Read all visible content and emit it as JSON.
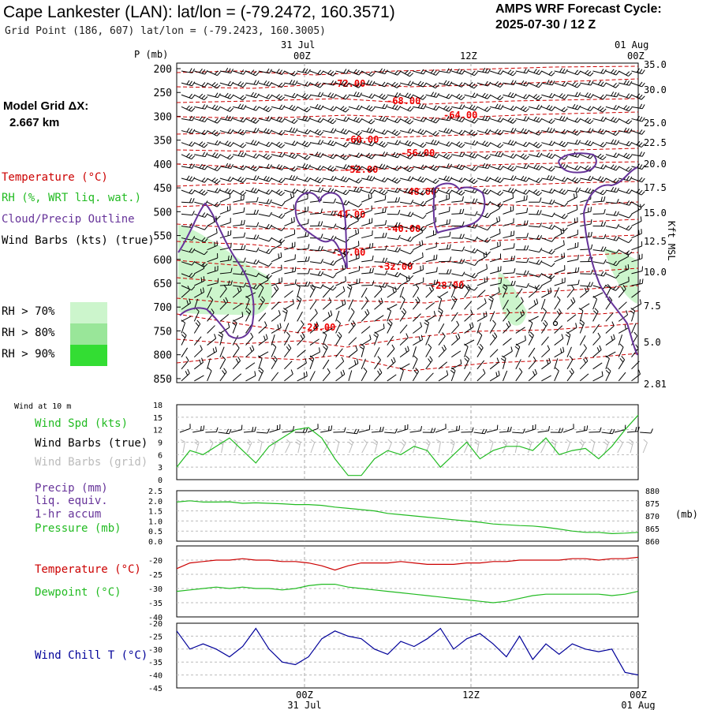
{
  "header": {
    "title": "Cape Lankester (LAN):  lat/lon = (-79.2472, 160.3571)",
    "subtitle": "Grid Point (186, 607) lat/lon = (-79.2423, 160.3005)",
    "cycle_line1": "AMPS WRF Forecast Cycle:",
    "cycle_line2": "2025-07-30 / 12  Z"
  },
  "model_grid": {
    "line1": "Model Grid ΔX:",
    "line2": "2.667 km"
  },
  "legend_upper": {
    "temperature": "Temperature (°C)",
    "rh": "RH (%, WRT liq. wat.)",
    "cloud": "Cloud/Precip Outline",
    "wind": "Wind Barbs (kts) (true)",
    "rh70": "RH > 70%",
    "rh80": "RH > 80%",
    "rh90": "RH > 90%",
    "rh_colors": [
      "#ccf5cc",
      "#99e699",
      "#33dd33"
    ]
  },
  "legend_lower": {
    "wind10": "Wind at 10 m",
    "wind_spd": "Wind Spd (kts)",
    "barbs_true": "Wind Barbs (true)",
    "barbs_grid": "Wind Barbs (grid)",
    "precip": "Precip (mm)",
    "liq": "liq. equiv.",
    "accum": "1-hr accum",
    "pressure": "Pressure (mb)",
    "temperature": "Temperature (°C)",
    "dewpoint": "Dewpoint (°C)",
    "windchill": "Wind Chill T (°C)"
  },
  "colors": {
    "temperature": "#cc0000",
    "green": "#22bb22",
    "cloud": "#663399",
    "windchill": "#000099",
    "gray_barb": "#bbbbbb"
  },
  "chart_data": [
    {
      "type": "line",
      "name": "upper-cross-section",
      "yaxis_label": "P (mb)",
      "pressure_ticks": [
        200,
        250,
        300,
        350,
        400,
        450,
        500,
        550,
        600,
        650,
        700,
        750,
        800,
        850
      ],
      "ylim": [
        200,
        870
      ],
      "height_axis_label": "Kft MSL",
      "height_ticks": [
        "35.0",
        "30.0",
        "25.0",
        "22.5",
        "20.0",
        "17.5",
        "15.0",
        "12.5",
        "10.0",
        "7.5",
        "5.0",
        "2.81"
      ],
      "top_time_labels": [
        {
          "date": "31 Jul",
          "hour": "00Z"
        },
        {
          "date": "",
          "hour": "12Z"
        },
        {
          "date": "01 Aug",
          "hour": "00Z"
        }
      ],
      "isotherm_labels": [
        "-72.00",
        "-68.00",
        "-64.00",
        "-60.00",
        "-56.00",
        "-52.00",
        "-48.00",
        "-44.00",
        "-40.00",
        "-36.00",
        "-32.00",
        "-28.00",
        "-24.00"
      ]
    },
    {
      "type": "line",
      "name": "wind-10m",
      "yticks": [
        0,
        3,
        6,
        9,
        12,
        15,
        18
      ],
      "ylim": [
        0,
        18
      ],
      "series": [
        {
          "name": "Wind Spd (kts)",
          "values": [
            3,
            7,
            6,
            8,
            10,
            7,
            4,
            8,
            10,
            12,
            12.5,
            10,
            5,
            1,
            1,
            5,
            7,
            6,
            8,
            7,
            3,
            6,
            9,
            5,
            7,
            8,
            8,
            7,
            10,
            6,
            7,
            7.5,
            5,
            8,
            12,
            15.5
          ]
        }
      ]
    },
    {
      "type": "line",
      "name": "precip-pressure",
      "yticks_left": [
        "0.0",
        "0.5",
        "1.0",
        "1.5",
        "2.0",
        "2.5"
      ],
      "ylim_left": [
        0,
        2.5
      ],
      "yticks_right": [
        "860",
        "865",
        "870",
        "875",
        "880"
      ],
      "ylim_right": [
        860,
        880
      ],
      "yunit_right": "(mb)",
      "series": [
        {
          "name": "Pressure (mb)",
          "values": [
            875.5,
            876,
            875.5,
            875.5,
            875.6,
            875,
            875.2,
            875,
            874.8,
            874.5,
            874.5,
            874.2,
            873.5,
            873,
            872.5,
            872,
            871,
            870.5,
            870,
            869.5,
            869,
            868.5,
            868,
            867.5,
            866.8,
            866.5,
            866.2,
            866,
            865.5,
            864.8,
            864,
            863.5,
            863.5,
            863,
            863.2,
            863.5
          ]
        }
      ]
    },
    {
      "type": "line",
      "name": "temperature-dewpoint",
      "yticks": [
        -40,
        -35,
        -30,
        -25,
        -20
      ],
      "ylim": [
        -40,
        -15
      ],
      "series": [
        {
          "name": "Temperature (°C)",
          "values": [
            -23,
            -21,
            -20.5,
            -20,
            -20,
            -19.5,
            -20,
            -20,
            -20.5,
            -20.5,
            -21,
            -22,
            -23.5,
            -22,
            -21,
            -21,
            -21,
            -20.5,
            -21,
            -21.5,
            -21.5,
            -21.5,
            -21,
            -21,
            -20.5,
            -20.5,
            -20,
            -20,
            -20,
            -20,
            -19.5,
            -19.5,
            -20,
            -19.5,
            -19.5,
            -19
          ]
        },
        {
          "name": "Dewpoint (°C)",
          "values": [
            -31,
            -30.5,
            -30,
            -29.5,
            -30,
            -29.5,
            -30,
            -30,
            -30.5,
            -30,
            -29,
            -28.5,
            -28.5,
            -29.5,
            -30,
            -30.5,
            -31,
            -31.5,
            -32,
            -32.5,
            -33,
            -33.5,
            -34,
            -34.5,
            -35,
            -34.5,
            -33.5,
            -32.5,
            -32,
            -32,
            -32,
            -32,
            -32,
            -32.5,
            -32,
            -31
          ]
        }
      ]
    },
    {
      "type": "line",
      "name": "wind-chill",
      "yticks": [
        -45,
        -40,
        -35,
        -30,
        -25,
        -20
      ],
      "ylim": [
        -45,
        -20
      ],
      "series": [
        {
          "name": "Wind Chill T (°C)",
          "values": [
            -23,
            -30,
            -28,
            -30,
            -33,
            -29,
            -22,
            -30,
            -35,
            -36,
            -33,
            -26,
            -23,
            -25,
            -26,
            -30,
            -32,
            -27,
            -29,
            -26,
            -22,
            -30,
            -26,
            -24,
            -28,
            -33,
            -25,
            -34,
            -28,
            -32,
            -28,
            -30,
            -31,
            -30,
            -39,
            -40
          ]
        }
      ]
    }
  ],
  "bottom_axis": {
    "labels": [
      {
        "hour": "00Z",
        "date": "31 Jul"
      },
      {
        "hour": "12Z",
        "date": ""
      },
      {
        "hour": "00Z",
        "date": "01 Aug"
      }
    ]
  }
}
